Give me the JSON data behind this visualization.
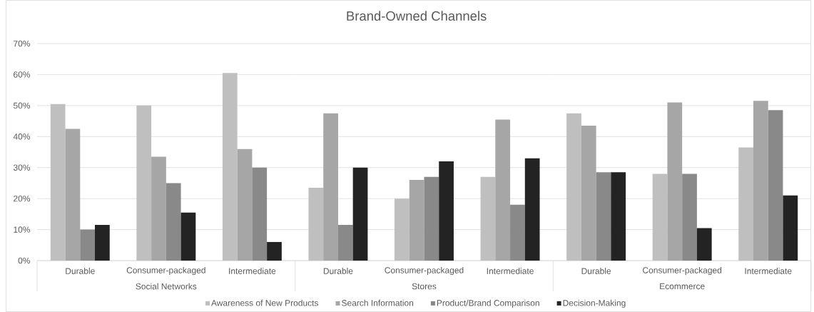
{
  "chart_data": [
    {
      "type": "bar",
      "categories": [
        "Durable",
        "Consumer-packaged",
        "Intermediate"
      ],
      "xlabel": "Social Networks",
      "series": [
        {
          "color": "#bfbfbf",
          "values": [
            50.5,
            50,
            60.5
          ]
        },
        {
          "color": "#a6a6a6",
          "values": [
            42.5,
            33.5,
            36
          ]
        },
        {
          "color": "#898989",
          "values": [
            10,
            25,
            30
          ]
        },
        {
          "color": "#232323",
          "values": [
            11.5,
            15.5,
            6
          ]
        }
      ],
      "ylim": [
        0,
        70
      ],
      "yticks": [
        {
          "value": 0,
          "label": "0%"
        },
        {
          "value": 10,
          "label": "10%"
        },
        {
          "value": 20,
          "label": "20%"
        },
        {
          "value": 30,
          "label": "30%"
        },
        {
          "value": 40,
          "label": "40%"
        },
        {
          "value": 50,
          "label": "50%"
        },
        {
          "value": 60,
          "label": "60%"
        },
        {
          "value": 70,
          "label": "70%"
        }
      ],
      "grid": "y"
    },
    {
      "type": "bar",
      "title": "Brand-Owned Channels",
      "categories": [
        "Durable",
        "Consumer-packaged",
        "Intermediate"
      ],
      "xlabel": "Stores",
      "series": [
        {
          "name": "Awareness of New Products",
          "color": "#bfbfbf",
          "values": [
            23.5,
            20,
            27
          ]
        },
        {
          "name": "Search Information",
          "color": "#a6a6a6",
          "values": [
            47.5,
            26,
            45.5
          ]
        },
        {
          "name": "Product/Brand Comparison",
          "color": "#898989",
          "values": [
            11.5,
            27,
            18
          ]
        },
        {
          "name": "Decision-Making",
          "color": "#232323",
          "values": [
            30,
            32,
            33
          ]
        }
      ],
      "ylim": [
        0,
        70
      ],
      "yticks": [
        0,
        10,
        20,
        30,
        40,
        50,
        60,
        70
      ],
      "grid": "y",
      "tick_labels": "x",
      "legend": "bottom"
    },
    {
      "type": "bar",
      "categories": [
        "Durable",
        "Consumer-packaged",
        "Intermediate"
      ],
      "xlabel": "Ecommerce",
      "series": [
        {
          "color": "#bfbfbf",
          "values": [
            47.5,
            28,
            36.5
          ]
        },
        {
          "color": "#a6a6a6",
          "values": [
            43.5,
            51,
            51.5
          ]
        },
        {
          "color": "#898989",
          "values": [
            28.5,
            28,
            48.5
          ]
        },
        {
          "color": "#232323",
          "values": [
            28.5,
            10.5,
            21
          ]
        }
      ],
      "ylim": [
        0,
        70
      ],
      "yticks": [
        0,
        10,
        20,
        30,
        40,
        50,
        60,
        70
      ],
      "grid": "y",
      "tick_labels": "x"
    }
  ]
}
